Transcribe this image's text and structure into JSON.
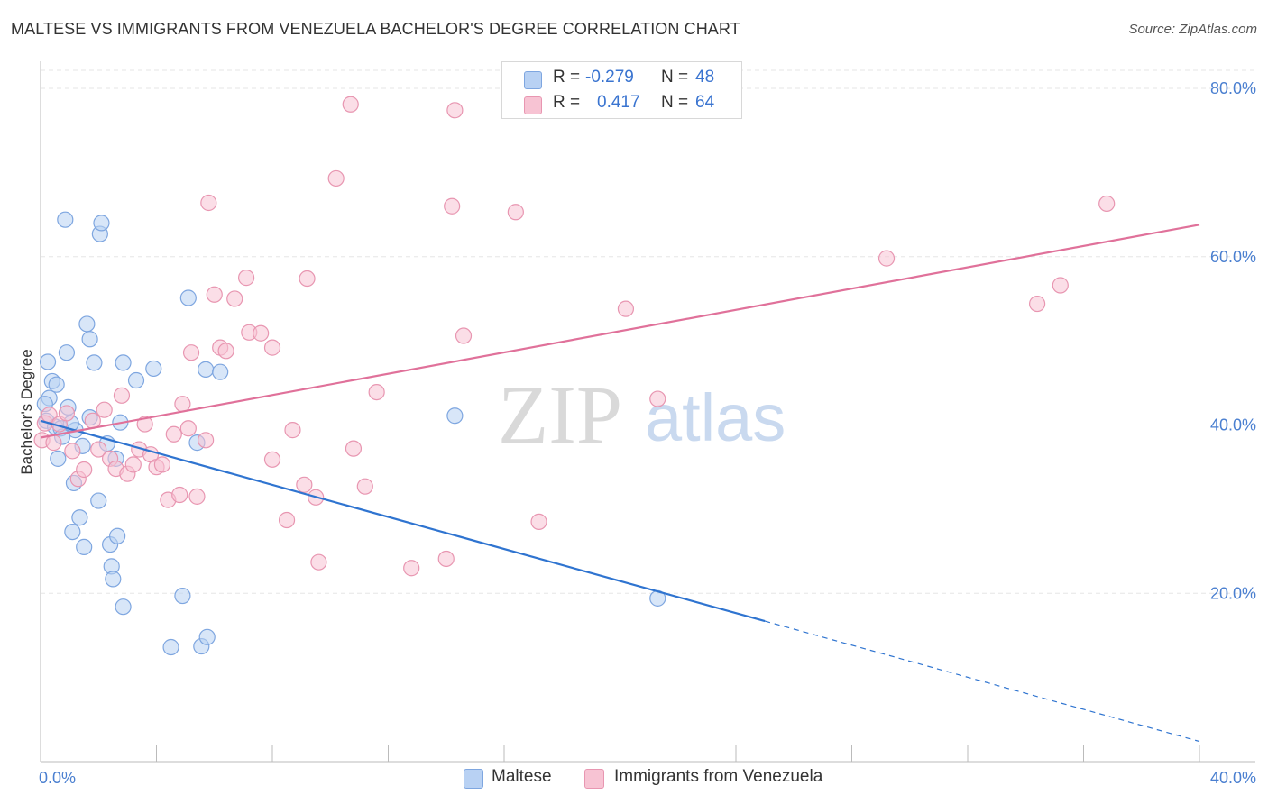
{
  "title": "MALTESE VS IMMIGRANTS FROM VENEZUELA BACHELOR'S DEGREE CORRELATION CHART",
  "source": "Source: ZipAtlas.com",
  "watermark": {
    "zip": "ZIP",
    "atlas": "atlas"
  },
  "legend": {
    "rows": [
      {
        "r_label": "R =",
        "r_value": "-0.279",
        "n_label": "N =",
        "n_value": "48"
      },
      {
        "r_label": "R =",
        "r_value": "0.417",
        "n_label": "N =",
        "n_value": "64"
      }
    ]
  },
  "bottom_legend": {
    "series1": "Maltese",
    "series2": "Immigrants from Venezuela"
  },
  "colors": {
    "blue_fill": "#b8d1f3",
    "blue_stroke": "#7ea6e0",
    "blue_line": "#2f74d0",
    "pink_fill": "#f7c3d3",
    "pink_stroke": "#e896b1",
    "pink_line": "#e0719a",
    "grid": "#e6e6e6",
    "axis_text": "#4a7fd0"
  },
  "chart_data": {
    "type": "scatter",
    "title": "MALTESE VS IMMIGRANTS FROM VENEZUELA BACHELOR'S DEGREE CORRELATION CHART",
    "xlabel": "",
    "ylabel": "Bachelor's Degree",
    "xlim": [
      0,
      40
    ],
    "ylim": [
      0,
      83
    ],
    "x_tick_labels": [
      {
        "value": 0,
        "label": "0.0%"
      },
      {
        "value": 40,
        "label": "40.0%"
      }
    ],
    "y_tick_labels": [
      {
        "value": 20,
        "label": "20.0%"
      },
      {
        "value": 40,
        "label": "40.0%"
      },
      {
        "value": 60,
        "label": "60.0%"
      },
      {
        "value": 80,
        "label": "80.0%"
      }
    ],
    "series": [
      {
        "name": "Maltese",
        "color": "#7ea6e0",
        "r": -0.279,
        "n": 48,
        "trend": {
          "x0": 0,
          "y0": 40.5,
          "x1": 25.0,
          "y1": 16.7,
          "dash_to_x": 40,
          "dash_to_y": 2.4
        },
        "points": [
          [
            0.2,
            40.5
          ],
          [
            0.25,
            47.5
          ],
          [
            0.3,
            43.2
          ],
          [
            0.4,
            45.2
          ],
          [
            0.5,
            39.8
          ],
          [
            0.55,
            44.8
          ],
          [
            0.6,
            36
          ],
          [
            0.7,
            39.6
          ],
          [
            0.75,
            38.6
          ],
          [
            0.85,
            64.4
          ],
          [
            0.9,
            48.6
          ],
          [
            0.95,
            42.1
          ],
          [
            1.1,
            27.3
          ],
          [
            1.15,
            33.1
          ],
          [
            1.2,
            39.4
          ],
          [
            1.35,
            29
          ],
          [
            1.45,
            37.5
          ],
          [
            1.5,
            25.5
          ],
          [
            1.6,
            52
          ],
          [
            1.7,
            50.2
          ],
          [
            1.7,
            40.9
          ],
          [
            1.85,
            47.4
          ],
          [
            2.0,
            31
          ],
          [
            2.05,
            62.7
          ],
          [
            2.1,
            64
          ],
          [
            2.3,
            37.8
          ],
          [
            2.4,
            25.8
          ],
          [
            2.45,
            23.2
          ],
          [
            2.5,
            21.7
          ],
          [
            2.6,
            36
          ],
          [
            2.65,
            26.8
          ],
          [
            2.75,
            40.3
          ],
          [
            2.85,
            47.4
          ],
          [
            2.85,
            18.4
          ],
          [
            3.3,
            45.3
          ],
          [
            3.9,
            46.7
          ],
          [
            4.5,
            13.6
          ],
          [
            4.9,
            19.7
          ],
          [
            5.1,
            55.1
          ],
          [
            5.4,
            37.9
          ],
          [
            5.55,
            13.7
          ],
          [
            5.7,
            46.6
          ],
          [
            5.75,
            14.8
          ],
          [
            6.2,
            46.3
          ],
          [
            14.3,
            41.1
          ],
          [
            21.3,
            19.4
          ],
          [
            0.15,
            42.5
          ],
          [
            1.05,
            40.2
          ]
        ]
      },
      {
        "name": "Immigrants from Venezuela",
        "color": "#e896b1",
        "r": 0.417,
        "n": 64,
        "trend": {
          "x0": 0,
          "y0": 38.5,
          "x1": 40,
          "y1": 63.8
        },
        "points": [
          [
            0.05,
            38.2
          ],
          [
            0.15,
            40.2
          ],
          [
            0.3,
            41.2
          ],
          [
            0.45,
            37.9
          ],
          [
            0.65,
            40.1
          ],
          [
            0.9,
            41.4
          ],
          [
            1.1,
            36.9
          ],
          [
            1.3,
            33.6
          ],
          [
            1.5,
            34.7
          ],
          [
            1.8,
            40.5
          ],
          [
            2.0,
            37.1
          ],
          [
            2.2,
            41.8
          ],
          [
            2.4,
            36
          ],
          [
            2.6,
            34.8
          ],
          [
            2.8,
            43.5
          ],
          [
            3.0,
            34.2
          ],
          [
            3.2,
            35.3
          ],
          [
            3.4,
            37.1
          ],
          [
            3.6,
            40.1
          ],
          [
            3.8,
            36.5
          ],
          [
            4.0,
            35
          ],
          [
            4.2,
            35.3
          ],
          [
            4.4,
            31.1
          ],
          [
            4.6,
            38.9
          ],
          [
            4.8,
            31.7
          ],
          [
            4.9,
            42.5
          ],
          [
            5.1,
            39.6
          ],
          [
            5.2,
            48.6
          ],
          [
            5.4,
            31.5
          ],
          [
            5.7,
            38.2
          ],
          [
            5.8,
            66.4
          ],
          [
            6.0,
            55.5
          ],
          [
            6.2,
            49.2
          ],
          [
            6.4,
            48.8
          ],
          [
            6.7,
            55
          ],
          [
            7.1,
            57.5
          ],
          [
            7.2,
            51
          ],
          [
            7.6,
            50.9
          ],
          [
            8.0,
            49.2
          ],
          [
            8.0,
            35.9
          ],
          [
            8.5,
            28.7
          ],
          [
            8.7,
            39.4
          ],
          [
            9.1,
            32.9
          ],
          [
            9.2,
            57.4
          ],
          [
            9.5,
            31.4
          ],
          [
            9.6,
            23.7
          ],
          [
            10.2,
            69.3
          ],
          [
            10.7,
            78.1
          ],
          [
            10.8,
            37.2
          ],
          [
            11.2,
            32.7
          ],
          [
            11.6,
            43.9
          ],
          [
            12.8,
            23
          ],
          [
            14.2,
            66
          ],
          [
            14.3,
            77.4
          ],
          [
            14.0,
            24.1
          ],
          [
            14.6,
            50.6
          ],
          [
            16.4,
            65.3
          ],
          [
            17.2,
            28.5
          ],
          [
            20.2,
            53.8
          ],
          [
            21.3,
            43.1
          ],
          [
            29.2,
            59.8
          ],
          [
            34.4,
            54.4
          ],
          [
            35.2,
            56.6
          ],
          [
            36.8,
            66.3
          ]
        ]
      }
    ]
  }
}
